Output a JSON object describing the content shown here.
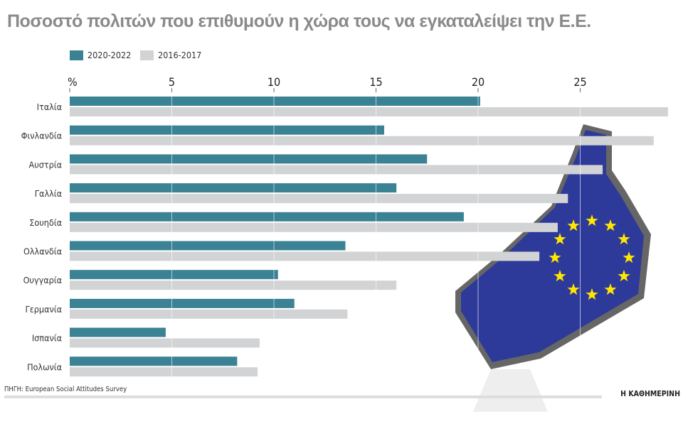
{
  "chart_data": {
    "type": "bar",
    "orientation": "horizontal",
    "title": "Ποσοστό πολιτών που επιθυμούν η χώρα τους να εγκαταλείψει την Ε.Ε.",
    "unit_label": "%",
    "categories": [
      "Ιταλία",
      "Φινλανδία",
      "Αυστρία",
      "Γαλλία",
      "Σουηδία",
      "Ολλανδία",
      "Ουγγαρία",
      "Γερμανία",
      "Ισπανία",
      "Πολωνία"
    ],
    "series": [
      {
        "name": "2020-2022",
        "color": "#3a8294",
        "values": [
          20.1,
          15.4,
          17.5,
          16.0,
          19.3,
          13.5,
          10.2,
          11.0,
          4.7,
          8.2
        ]
      },
      {
        "name": "2016-2017",
        "color": "#d2d3d5",
        "values": [
          29.3,
          28.6,
          26.1,
          24.4,
          23.9,
          23.0,
          16.0,
          13.6,
          9.3,
          9.2
        ]
      }
    ],
    "xlim": [
      0,
      30
    ],
    "xticks": [
      5,
      10,
      15,
      20,
      25
    ],
    "grid": true,
    "legend": "top-left"
  },
  "source": "ΠΗΓΗ: European Social Attitudes Survey",
  "brand": "Η ΚΑΘΗΜΕΡΙΝΗ",
  "illustration": "eu-thumbs-up-icon"
}
